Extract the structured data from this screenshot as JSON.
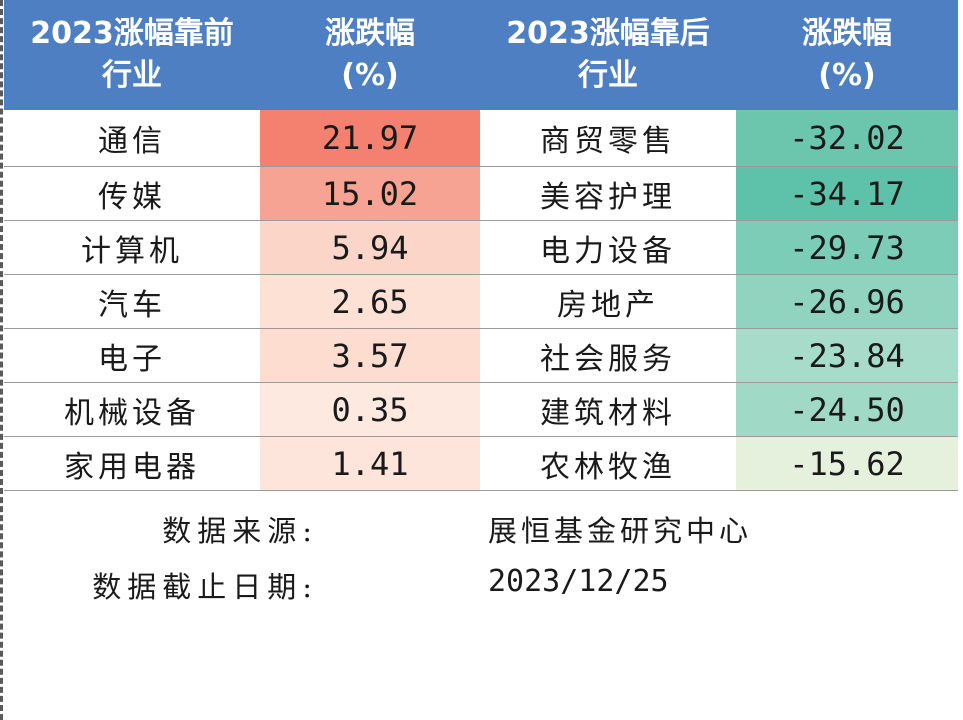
{
  "table": {
    "headers": [
      {
        "line1": "2023涨幅靠前",
        "line2": "行业"
      },
      {
        "line1": "涨跌幅",
        "line2": "(%)"
      },
      {
        "line1": "2023涨幅靠后",
        "line2": "行业"
      },
      {
        "line1": "涨跌幅",
        "line2": "(%)"
      }
    ],
    "rows": [
      {
        "top_industry": "通信",
        "top_change": "21.97",
        "top_color": "#f4806f",
        "bottom_industry": "商贸零售",
        "bottom_change": "-32.02",
        "bottom_color": "#6cc6ae"
      },
      {
        "top_industry": "传媒",
        "top_change": "15.02",
        "top_color": "#f6a393",
        "bottom_industry": "美容护理",
        "bottom_change": "-34.17",
        "bottom_color": "#5dc2a9"
      },
      {
        "top_industry": "计算机",
        "top_change": "5.94",
        "top_color": "#fbd6c8",
        "bottom_industry": "电力设备",
        "bottom_change": "-29.73",
        "bottom_color": "#7ccdb7"
      },
      {
        "top_industry": "汽车",
        "top_change": "2.65",
        "top_color": "#fde1d5",
        "bottom_industry": "房地产",
        "bottom_change": "-26.96",
        "bottom_color": "#90d4bf"
      },
      {
        "top_industry": "电子",
        "top_change": "3.57",
        "top_color": "#fcddd0",
        "bottom_industry": "社会服务",
        "bottom_change": "-23.84",
        "bottom_color": "#a6dcc9"
      },
      {
        "top_industry": "机械设备",
        "top_change": "0.35",
        "top_color": "#fee9e0",
        "bottom_industry": "建筑材料",
        "bottom_change": "-24.50",
        "bottom_color": "#a0d9c5"
      },
      {
        "top_industry": "家用电器",
        "top_change": "1.41",
        "top_color": "#fee5db",
        "bottom_industry": "农林牧渔",
        "bottom_change": "-15.62",
        "bottom_color": "#e5f1dc"
      }
    ]
  },
  "footer": {
    "source_label": "数据来源:",
    "source_value": "展恒基金研究中心",
    "date_label": "数据截止日期:",
    "date_value": "2023/12/25"
  }
}
